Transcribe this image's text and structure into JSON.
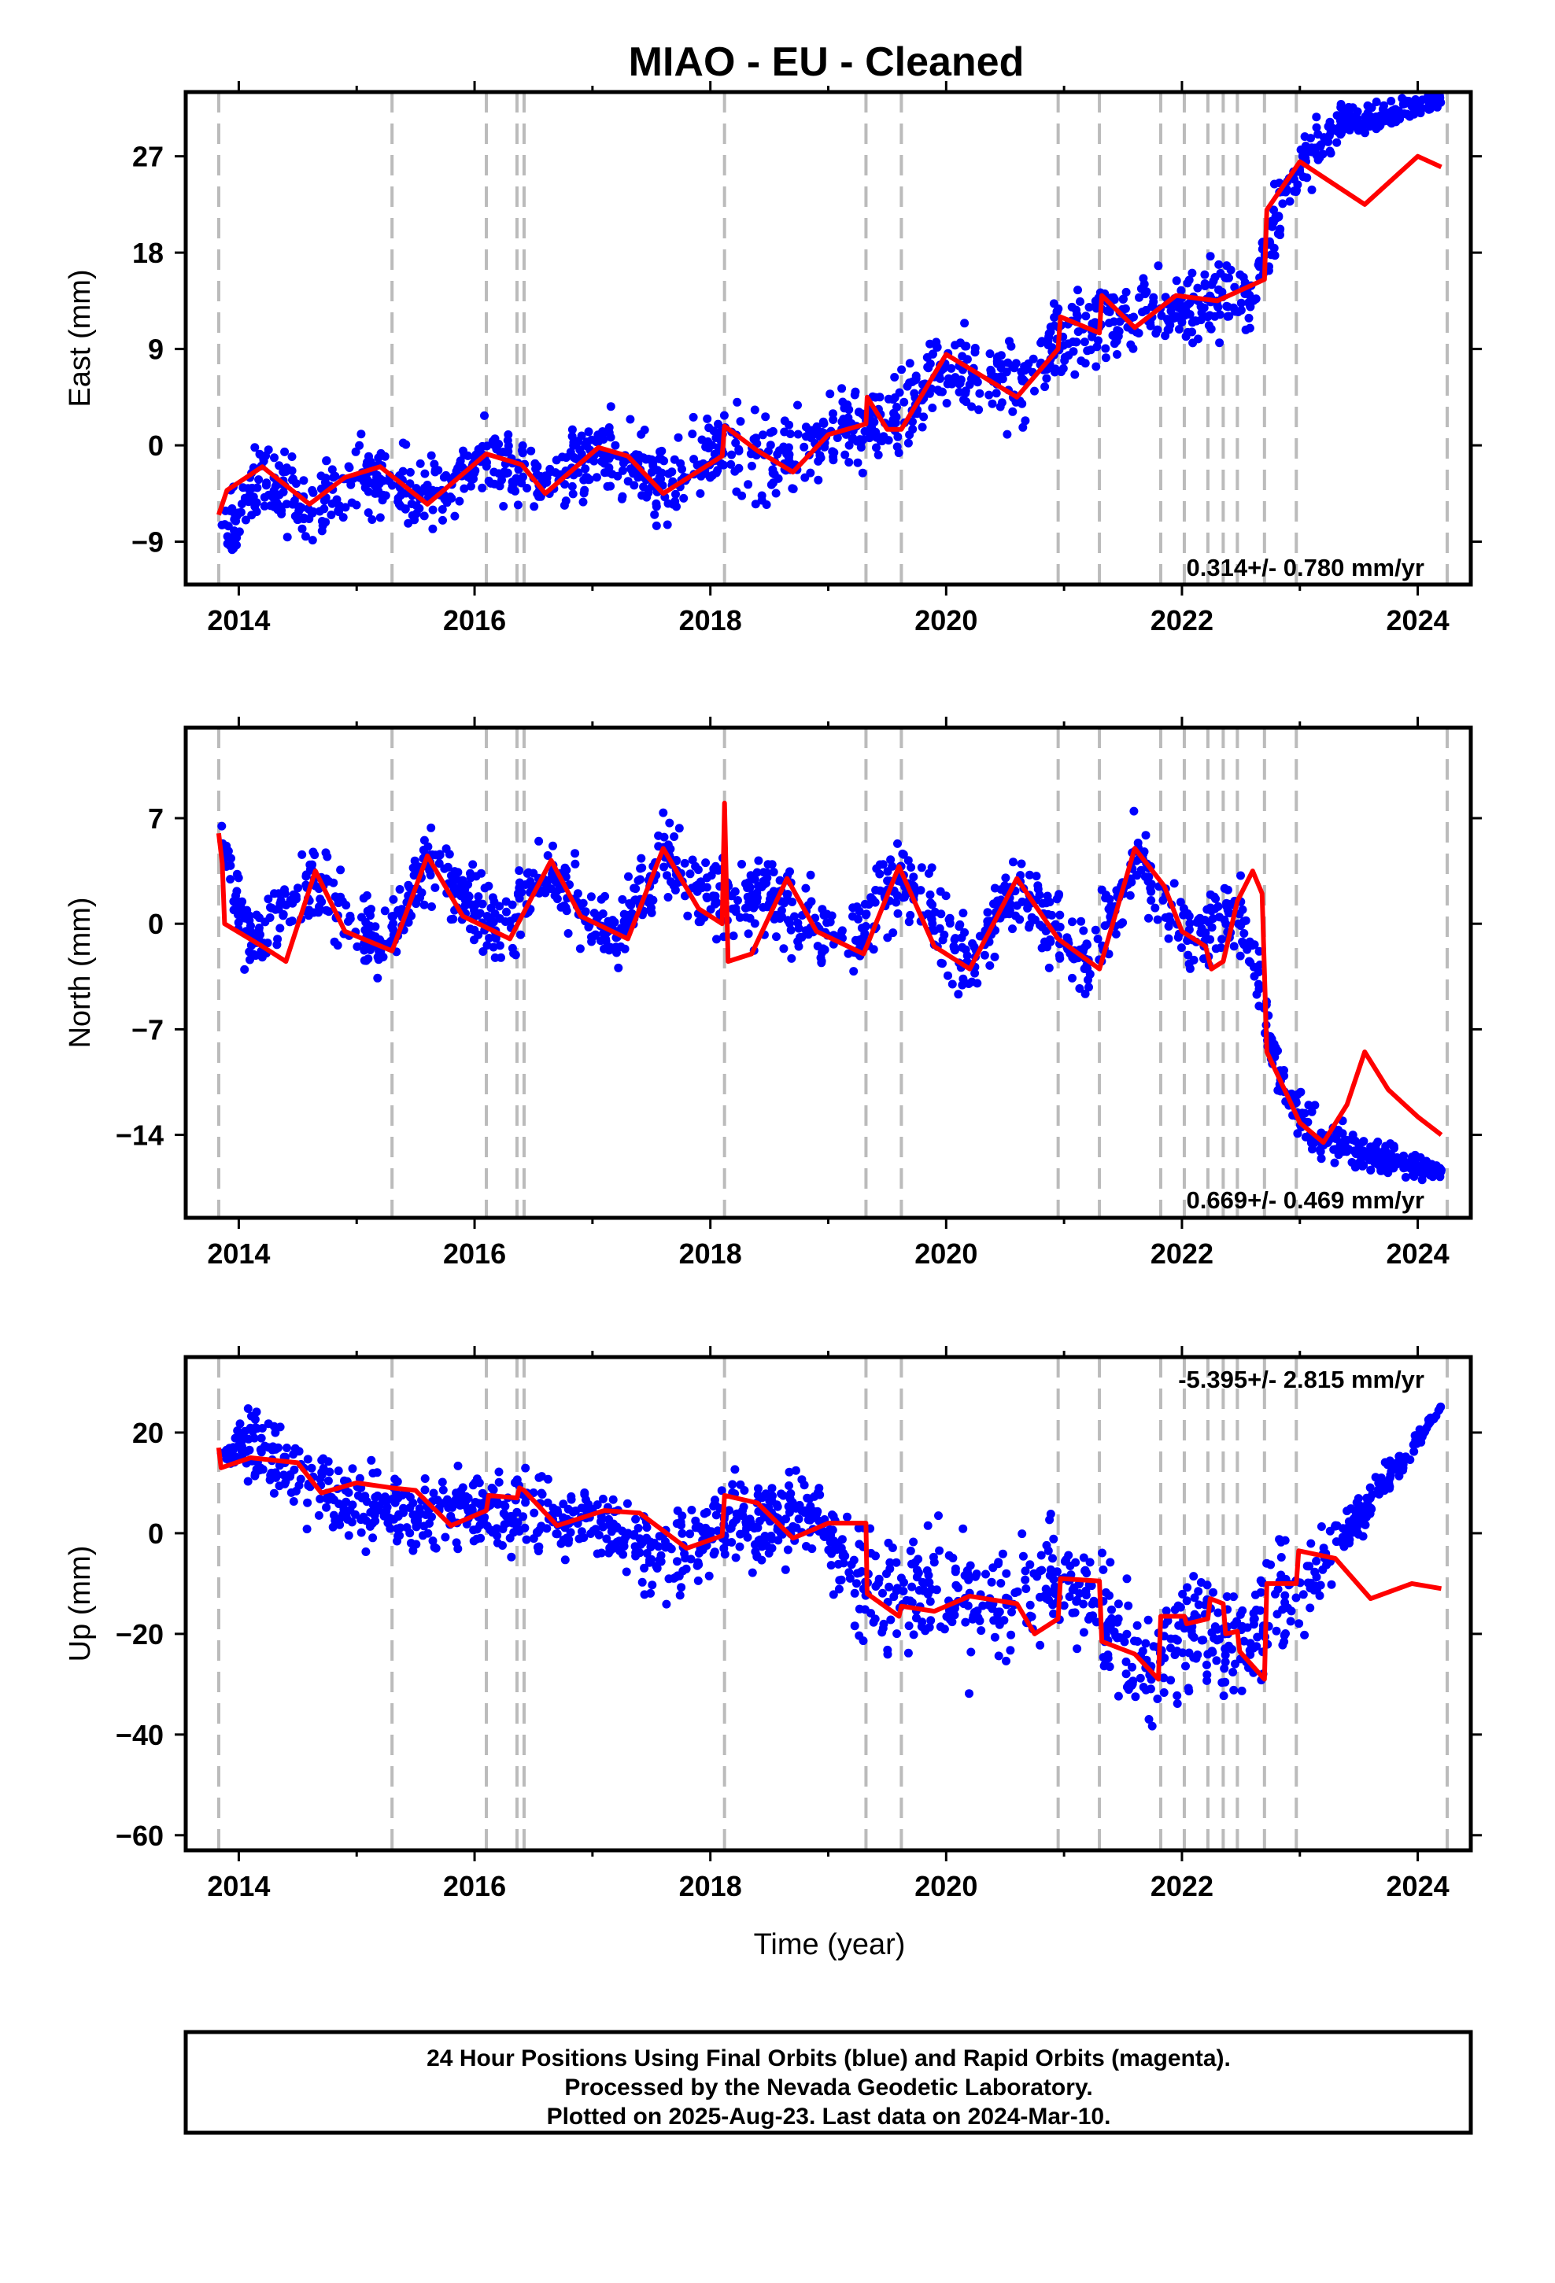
{
  "title": "MIAO  - EU - Cleaned",
  "xlabel": "Time (year)",
  "footer": {
    "line1": "24 Hour Positions Using Final Orbits (blue) and Rapid Orbits (magenta).",
    "line2": "Processed by the Nevada Geodetic Laboratory.",
    "line3": "Plotted on 2025-Aug-23. Last data on 2024-Mar-10."
  },
  "colors": {
    "points": "#0000ff",
    "model": "#ff0000",
    "event_lines": "#bbbbbb"
  },
  "chart_data": [
    {
      "type": "scatter",
      "id": "east",
      "ylabel": "East (mm)",
      "rate_label": "0.314+/- 0.780 mm/yr",
      "xlim": [
        2013.55,
        2024.45
      ],
      "ylim": [
        -13,
        33
      ],
      "xticks": [
        2014,
        2016,
        2018,
        2020,
        2022,
        2024
      ],
      "yticks": [
        -9,
        0,
        9,
        18,
        27
      ],
      "event_lines": [
        2013.83,
        2015.3,
        2016.1,
        2016.36,
        2016.42,
        2018.12,
        2019.32,
        2019.62,
        2020.95,
        2021.3,
        2021.82,
        2022.02,
        2022.22,
        2022.35,
        2022.47,
        2022.7,
        2022.97,
        2024.25
      ],
      "offsets": [
        [
          2013.83,
          -6.5
        ],
        [
          2018.12,
          1.5
        ],
        [
          2019.32,
          1.5
        ],
        [
          2019.5,
          4.5
        ],
        [
          2019.62,
          1.5
        ],
        [
          2020.95,
          9.5
        ],
        [
          2021.3,
          13.0
        ],
        [
          2022.7,
          22.0
        ]
      ],
      "model": {
        "base": [
          [
            2013.83,
            -6.5
          ],
          [
            2013.9,
            -4.2
          ],
          [
            2014.2,
            -2.0
          ],
          [
            2014.6,
            -5.5
          ],
          [
            2014.9,
            -3.0
          ],
          [
            2015.2,
            -2.0
          ],
          [
            2015.6,
            -5.5
          ],
          [
            2016.1,
            -0.8
          ],
          [
            2016.4,
            -1.8
          ],
          [
            2016.6,
            -4.5
          ],
          [
            2017.05,
            -0.2
          ],
          [
            2017.3,
            -1.0
          ],
          [
            2017.6,
            -4.5
          ],
          [
            2018.1,
            -1.0
          ],
          [
            2018.12,
            1.8
          ],
          [
            2018.4,
            -0.5
          ],
          [
            2018.7,
            -2.5
          ],
          [
            2019.0,
            1.0
          ],
          [
            2019.32,
            2.0
          ],
          [
            2019.33,
            4.5
          ],
          [
            2019.5,
            1.5
          ],
          [
            2019.62,
            1.5
          ],
          [
            2020.0,
            8.5
          ],
          [
            2020.6,
            4.5
          ],
          [
            2020.95,
            9.0
          ],
          [
            2020.97,
            12.0
          ],
          [
            2021.3,
            10.5
          ],
          [
            2021.32,
            14.0
          ],
          [
            2021.6,
            11.0
          ],
          [
            2021.95,
            14.0
          ],
          [
            2022.3,
            13.5
          ],
          [
            2022.7,
            15.5
          ],
          [
            2022.72,
            22.0
          ],
          [
            2023.0,
            26.5
          ],
          [
            2023.55,
            22.5
          ],
          [
            2024.0,
            27.0
          ],
          [
            2024.2,
            26.0
          ]
        ]
      },
      "points_outline": [
        [
          2013.85,
          -8.5,
          3.0
        ],
        [
          2014.2,
          -3.0,
          3.2
        ],
        [
          2014.6,
          -6.0,
          3.2
        ],
        [
          2015.0,
          -2.5,
          3.0
        ],
        [
          2015.6,
          -5.0,
          3.0
        ],
        [
          2016.1,
          -0.5,
          3.0
        ],
        [
          2016.6,
          -4.0,
          3.0
        ],
        [
          2017.1,
          0.0,
          3.0
        ],
        [
          2017.6,
          -4.0,
          3.2
        ],
        [
          2018.1,
          0.5,
          3.2
        ],
        [
          2018.6,
          -2.0,
          3.5
        ],
        [
          2019.1,
          1.5,
          3.5
        ],
        [
          2019.5,
          2.0,
          3.5
        ],
        [
          2020.0,
          8.0,
          3.5
        ],
        [
          2020.6,
          5.0,
          3.5
        ],
        [
          2021.0,
          10.5,
          3.5
        ],
        [
          2021.5,
          12.0,
          3.5
        ],
        [
          2022.0,
          13.0,
          3.5
        ],
        [
          2022.6,
          14.5,
          3.0
        ],
        [
          2022.9,
          24.0,
          3.0
        ],
        [
          2023.1,
          27.0,
          3.0
        ],
        [
          2023.3,
          30.0,
          2.0
        ],
        [
          2024.2,
          32.0,
          0.5
        ]
      ]
    },
    {
      "type": "scatter",
      "id": "north",
      "ylabel": "North (mm)",
      "rate_label": "0.669+/- 0.469 mm/yr",
      "xlim": [
        2013.55,
        2024.45
      ],
      "ylim": [
        -19.5,
        13
      ],
      "xticks": [
        2014,
        2016,
        2018,
        2020,
        2022,
        2024
      ],
      "yticks": [
        -14,
        -7,
        0,
        7
      ],
      "event_lines": [
        2013.83,
        2015.3,
        2016.1,
        2016.36,
        2016.42,
        2018.12,
        2019.32,
        2019.62,
        2020.95,
        2021.3,
        2021.82,
        2022.02,
        2022.22,
        2022.35,
        2022.47,
        2022.7,
        2022.97,
        2024.25
      ],
      "model": {
        "base": [
          [
            2013.83,
            6.0
          ],
          [
            2013.86,
            4.0
          ],
          [
            2013.88,
            0.0
          ],
          [
            2014.2,
            -1.5
          ],
          [
            2014.4,
            -2.5
          ],
          [
            2014.65,
            3.5
          ],
          [
            2014.9,
            -0.5
          ],
          [
            2015.3,
            -1.8
          ],
          [
            2015.6,
            4.5
          ],
          [
            2015.9,
            0.5
          ],
          [
            2016.3,
            -1.0
          ],
          [
            2016.65,
            4.2
          ],
          [
            2016.9,
            0.5
          ],
          [
            2017.3,
            -1.0
          ],
          [
            2017.6,
            5.0
          ],
          [
            2017.9,
            1.0
          ],
          [
            2018.1,
            0.0
          ],
          [
            2018.12,
            8.0
          ],
          [
            2018.15,
            -2.5
          ],
          [
            2018.35,
            -2.0
          ],
          [
            2018.65,
            3.0
          ],
          [
            2018.9,
            -0.5
          ],
          [
            2019.3,
            -2.0
          ],
          [
            2019.6,
            3.8
          ],
          [
            2019.9,
            -1.5
          ],
          [
            2020.2,
            -3.0
          ],
          [
            2020.6,
            3.0
          ],
          [
            2020.95,
            -1.0
          ],
          [
            2021.3,
            -3.0
          ],
          [
            2021.6,
            5.0
          ],
          [
            2021.85,
            2.5
          ],
          [
            2022.0,
            -0.5
          ],
          [
            2022.2,
            -1.5
          ],
          [
            2022.25,
            -3.0
          ],
          [
            2022.35,
            -2.5
          ],
          [
            2022.47,
            1.5
          ],
          [
            2022.6,
            3.5
          ],
          [
            2022.68,
            2.0
          ],
          [
            2022.72,
            -8.5
          ],
          [
            2022.9,
            -11.5
          ],
          [
            2023.0,
            -13.2
          ],
          [
            2023.2,
            -14.5
          ],
          [
            2023.4,
            -12.0
          ],
          [
            2023.55,
            -8.5
          ],
          [
            2023.75,
            -11.0
          ],
          [
            2024.0,
            -12.8
          ],
          [
            2024.2,
            -14.0
          ]
        ]
      },
      "points_outline": [
        [
          2013.85,
          5.5,
          1.5
        ],
        [
          2014.1,
          -1.5,
          2.2
        ],
        [
          2014.6,
          2.5,
          2.2
        ],
        [
          2015.2,
          -1.5,
          2.2
        ],
        [
          2015.6,
          4.0,
          2.2
        ],
        [
          2016.2,
          -0.5,
          2.2
        ],
        [
          2016.6,
          3.5,
          2.2
        ],
        [
          2017.2,
          -1.0,
          2.4
        ],
        [
          2017.6,
          4.5,
          2.4
        ],
        [
          2018.1,
          1.5,
          2.4
        ],
        [
          2018.5,
          2.0,
          2.4
        ],
        [
          2019.2,
          -1.5,
          2.4
        ],
        [
          2019.6,
          3.5,
          2.4
        ],
        [
          2020.2,
          -2.5,
          2.2
        ],
        [
          2020.6,
          2.5,
          2.2
        ],
        [
          2021.2,
          -2.5,
          2.2
        ],
        [
          2021.6,
          4.5,
          2.4
        ],
        [
          2022.1,
          -1.0,
          2.4
        ],
        [
          2022.5,
          1.0,
          2.4
        ],
        [
          2022.8,
          -9.5,
          1.5
        ],
        [
          2023.0,
          -12.5,
          1.5
        ],
        [
          2023.2,
          -14.5,
          1.8
        ],
        [
          2024.2,
          -16.5,
          0.5
        ]
      ]
    },
    {
      "type": "scatter",
      "id": "up",
      "ylabel": "Up (mm)",
      "rate_label": "-5.395+/- 2.815 mm/yr",
      "xlim": [
        2013.55,
        2024.45
      ],
      "ylim": [
        -63,
        35
      ],
      "xticks": [
        2014,
        2016,
        2018,
        2020,
        2022,
        2024
      ],
      "yticks": [
        -60,
        -40,
        -20,
        0,
        20
      ],
      "event_lines": [
        2013.83,
        2015.3,
        2016.1,
        2016.36,
        2016.42,
        2018.12,
        2019.32,
        2019.62,
        2020.95,
        2021.3,
        2021.82,
        2022.02,
        2022.22,
        2022.35,
        2022.47,
        2022.7,
        2022.97,
        2024.25
      ],
      "model": {
        "base": [
          [
            2013.83,
            17.0
          ],
          [
            2013.85,
            13.0
          ],
          [
            2014.1,
            15.0
          ],
          [
            2014.5,
            14.0
          ],
          [
            2014.7,
            8.0
          ],
          [
            2015.0,
            10.0
          ],
          [
            2015.3,
            9.0
          ],
          [
            2015.5,
            8.5
          ],
          [
            2015.8,
            1.5
          ],
          [
            2016.1,
            4.5
          ],
          [
            2016.12,
            7.5
          ],
          [
            2016.36,
            7.0
          ],
          [
            2016.38,
            9.0
          ],
          [
            2016.42,
            8.5
          ],
          [
            2016.7,
            1.5
          ],
          [
            2017.1,
            4.5
          ],
          [
            2017.4,
            4.0
          ],
          [
            2017.8,
            -3.0
          ],
          [
            2018.1,
            -0.5
          ],
          [
            2018.12,
            7.5
          ],
          [
            2018.4,
            6.0
          ],
          [
            2018.7,
            -1.0
          ],
          [
            2019.0,
            2.0
          ],
          [
            2019.32,
            2.0
          ],
          [
            2019.33,
            -12.0
          ],
          [
            2019.6,
            -16.5
          ],
          [
            2019.62,
            -14.5
          ],
          [
            2019.9,
            -15.5
          ],
          [
            2020.2,
            -12.5
          ],
          [
            2020.6,
            -14.0
          ],
          [
            2020.75,
            -20.0
          ],
          [
            2020.95,
            -17.0
          ],
          [
            2020.97,
            -9.0
          ],
          [
            2021.3,
            -9.5
          ],
          [
            2021.32,
            -21.5
          ],
          [
            2021.6,
            -24.0
          ],
          [
            2021.8,
            -29.0
          ],
          [
            2021.82,
            -16.5
          ],
          [
            2022.02,
            -16.5
          ],
          [
            2022.04,
            -18.0
          ],
          [
            2022.22,
            -17.0
          ],
          [
            2022.24,
            -13.0
          ],
          [
            2022.35,
            -14.0
          ],
          [
            2022.37,
            -20.0
          ],
          [
            2022.47,
            -19.5
          ],
          [
            2022.49,
            -23.5
          ],
          [
            2022.7,
            -29.0
          ],
          [
            2022.72,
            -10.0
          ],
          [
            2022.97,
            -10.0
          ],
          [
            2022.99,
            -3.5
          ],
          [
            2023.3,
            -5.0
          ],
          [
            2023.6,
            -13.0
          ],
          [
            2023.95,
            -10.0
          ],
          [
            2024.2,
            -11.0
          ]
        ]
      },
      "points_outline": [
        [
          2013.85,
          16.0,
          5.0
        ],
        [
          2014.2,
          18.0,
          7.0
        ],
        [
          2014.6,
          10.0,
          7.0
        ],
        [
          2015.0,
          6.0,
          6.5
        ],
        [
          2015.5,
          4.0,
          6.5
        ],
        [
          2016.0,
          5.0,
          6.5
        ],
        [
          2016.5,
          4.0,
          6.5
        ],
        [
          2017.0,
          3.0,
          6.5
        ],
        [
          2017.6,
          -5.0,
          8.0
        ],
        [
          2018.2,
          3.0,
          8.0
        ],
        [
          2018.8,
          4.0,
          8.0
        ],
        [
          2019.5,
          -15.0,
          12.0
        ],
        [
          2020.0,
          -11.0,
          12.0
        ],
        [
          2020.5,
          -14.0,
          11.0
        ],
        [
          2021.0,
          -8.0,
          11.0
        ],
        [
          2021.6,
          -26.0,
          12.0
        ],
        [
          2022.1,
          -20.0,
          11.0
        ],
        [
          2022.5,
          -22.0,
          11.0
        ],
        [
          2022.9,
          -12.0,
          9.0
        ],
        [
          2023.2,
          -6.0,
          7.0
        ],
        [
          2024.2,
          25.0,
          0.5
        ]
      ]
    }
  ]
}
